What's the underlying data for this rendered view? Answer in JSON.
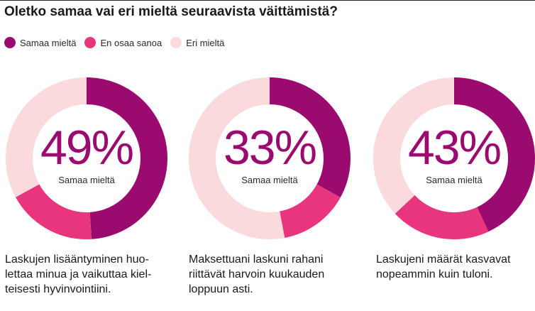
{
  "title": "Oletko samaa vai eri mieltä seuraavista väittämistä?",
  "legend": [
    {
      "label": "Samaa mieltä",
      "color": "#9b0a6e"
    },
    {
      "label": "En osaa sanoa",
      "color": "#e8357e"
    },
    {
      "label": "Eri mieltä",
      "color": "#fadadd"
    }
  ],
  "chart_data": [
    {
      "type": "pie",
      "big_label": "49%",
      "sub_label": "Samaa mieltä",
      "caption": [
        "Laskujen lisääntyminen huo-",
        "lettaa minua ja vaikuttaa kiel-",
        "teisesti hyvinvointiini."
      ],
      "slices": [
        {
          "name": "Samaa mieltä",
          "value": 49,
          "color": "#9b0a6e"
        },
        {
          "name": "En osaa sanoa",
          "value": 18,
          "color": "#e8357e"
        },
        {
          "name": "Eri mieltä",
          "value": 33,
          "color": "#fadadd"
        }
      ]
    },
    {
      "type": "pie",
      "big_label": "33%",
      "sub_label": "Samaa mieltä",
      "caption": [
        "Maksettuani laskuni rahani",
        "riittävät harvoin kuukauden",
        "loppuun asti."
      ],
      "slices": [
        {
          "name": "Samaa mieltä",
          "value": 33,
          "color": "#9b0a6e"
        },
        {
          "name": "En osaa sanoa",
          "value": 14,
          "color": "#e8357e"
        },
        {
          "name": "Eri mieltä",
          "value": 53,
          "color": "#fadadd"
        }
      ]
    },
    {
      "type": "pie",
      "big_label": "43%",
      "sub_label": "Samaa mieltä",
      "caption": [
        "Laskujeni määrät kasvavat",
        "nopeammin kuin tuloni."
      ],
      "slices": [
        {
          "name": "Samaa mieltä",
          "value": 43,
          "color": "#9b0a6e"
        },
        {
          "name": "En osaa sanoa",
          "value": 20,
          "color": "#e8357e"
        },
        {
          "name": "Eri mieltä",
          "value": 37,
          "color": "#fadadd"
        }
      ]
    }
  ]
}
